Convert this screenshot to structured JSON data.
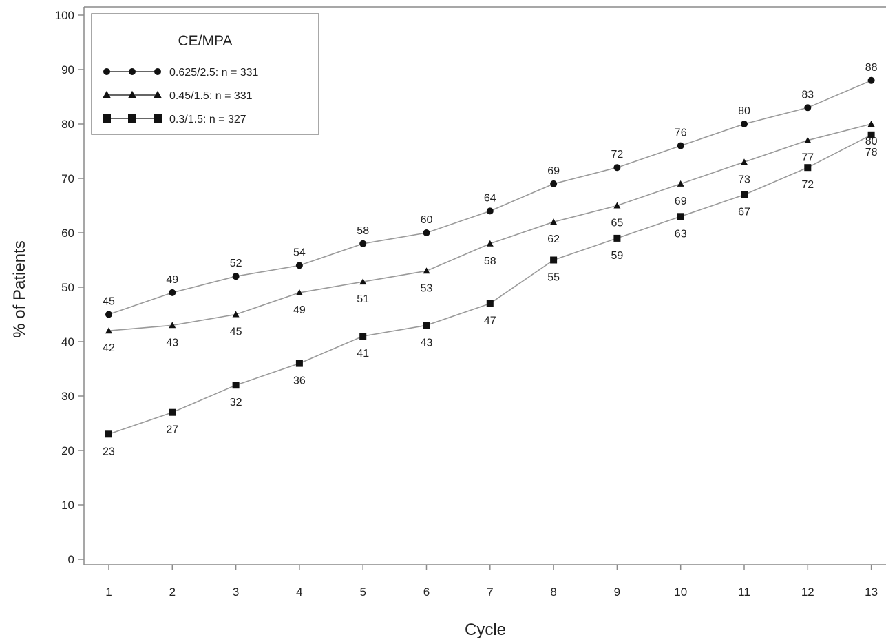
{
  "chart_data": {
    "type": "line",
    "title": "",
    "xlabel": "Cycle",
    "ylabel": "% of Patients",
    "xlim": [
      1,
      13
    ],
    "ylim": [
      0,
      100
    ],
    "x": [
      1,
      2,
      3,
      4,
      5,
      6,
      7,
      8,
      9,
      10,
      11,
      12,
      13
    ],
    "x_tick_labels": [
      "1",
      "2",
      "3",
      "4",
      "5",
      "6",
      "7",
      "8",
      "9",
      "10",
      "11",
      "12",
      "13"
    ],
    "y_ticks": [
      0,
      10,
      20,
      30,
      40,
      50,
      60,
      70,
      80,
      90,
      100
    ],
    "y_tick_labels": [
      "0",
      "10",
      "20",
      "30",
      "40",
      "50",
      "60",
      "70",
      "80",
      "90",
      "100"
    ],
    "grid": false,
    "legend": {
      "title": "CE/MPA",
      "placement": "top-left",
      "entries": [
        {
          "label": "0.625/2.5:  n = 331",
          "marker": "circle"
        },
        {
          "label": "0.45/1.5:  n = 331",
          "marker": "triangle"
        },
        {
          "label": "0.3/1.5:  n = 327",
          "marker": "square"
        }
      ]
    },
    "series": [
      {
        "name": "0.625/2.5:  n = 331",
        "marker": "circle",
        "values": [
          45,
          49,
          52,
          54,
          58,
          60,
          64,
          69,
          72,
          76,
          80,
          83,
          88
        ],
        "labels": [
          "45",
          "49",
          "52",
          "54",
          "58",
          "60",
          "64",
          "69",
          "72",
          "76",
          "80",
          "83",
          "88"
        ]
      },
      {
        "name": "0.45/1.5:  n = 331",
        "marker": "triangle",
        "values": [
          42,
          43,
          45,
          49,
          51,
          53,
          58,
          62,
          65,
          69,
          73,
          77,
          80
        ],
        "labels": [
          "42",
          "43",
          "45",
          "49",
          "51",
          "53",
          "58",
          "62",
          "65",
          "69",
          "73",
          "77",
          "80"
        ]
      },
      {
        "name": "0.3/1.5:  n = 327",
        "marker": "square",
        "values": [
          23,
          27,
          32,
          36,
          41,
          43,
          47,
          55,
          59,
          63,
          67,
          72,
          78
        ],
        "labels": [
          "23",
          "27",
          "32",
          "36",
          "41",
          "43",
          "47",
          "55",
          "59",
          "63",
          "67",
          "72",
          "78"
        ]
      }
    ],
    "colors": {
      "line": "#9a9a9a",
      "marker": "#111111",
      "frame": "#8a8a8a"
    }
  }
}
